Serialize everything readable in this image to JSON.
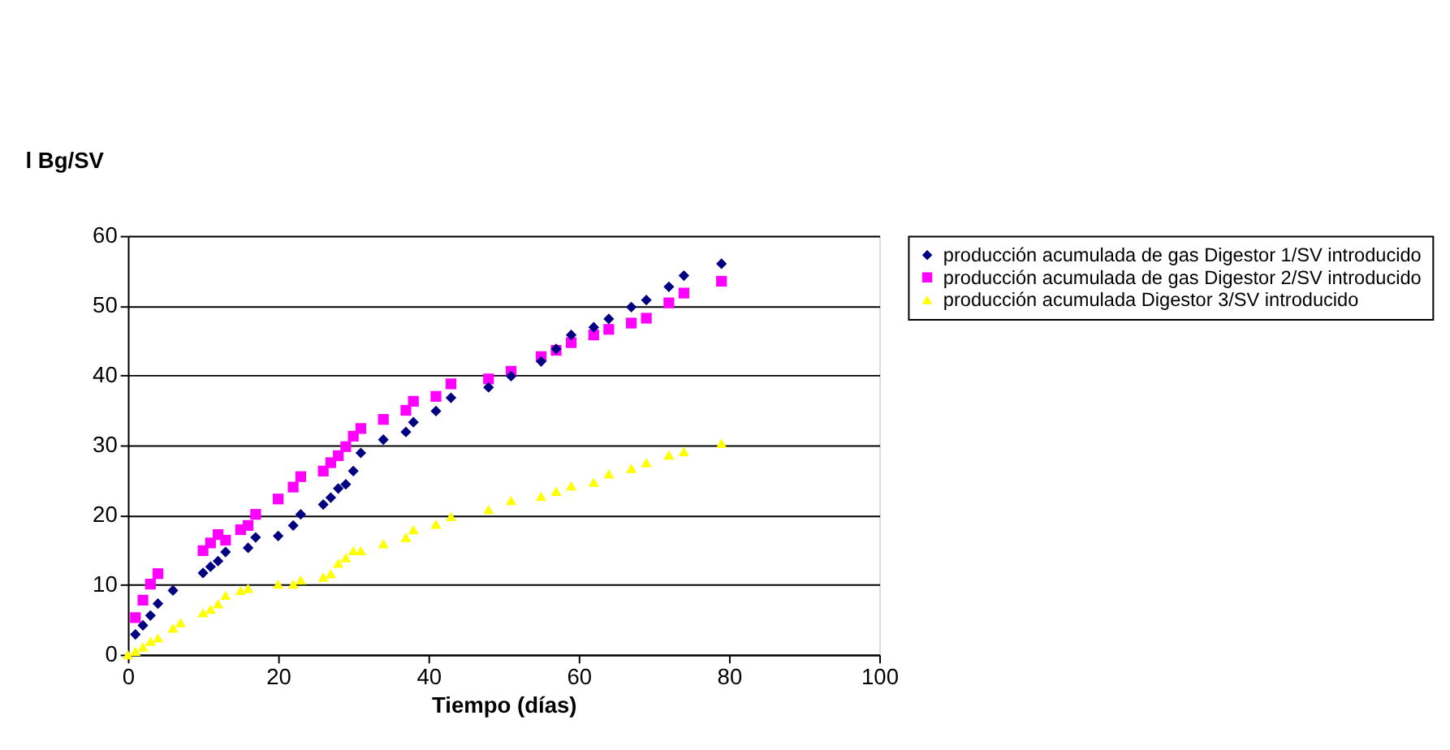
{
  "chart_data": {
    "type": "scatter",
    "xlabel": "Tiempo (días)",
    "ylabel": "l Bg/SV",
    "xlim": [
      0,
      100
    ],
    "xticks": [
      0,
      20,
      40,
      60,
      80,
      100
    ],
    "ylim": [
      0,
      60
    ],
    "yticks": [
      0,
      10,
      20,
      30,
      40,
      50,
      60
    ],
    "grid": "y",
    "legend": "right",
    "series": [
      {
        "name": "producción acumulada de gas Digestor 1/SV introducido",
        "color": "#000080",
        "marker": "diamond",
        "x": [
          1,
          2,
          3,
          4,
          6,
          10,
          11,
          12,
          13,
          16,
          17,
          20,
          22,
          23,
          26,
          27,
          28,
          29,
          30,
          31,
          34,
          37,
          38,
          41,
          43,
          48,
          51,
          55,
          57,
          59,
          62,
          64,
          67,
          69,
          72,
          74,
          79
        ],
        "values": [
          2.9,
          4.2,
          5.6,
          7.3,
          9.2,
          11.7,
          12.6,
          13.4,
          14.7,
          15.3,
          16.8,
          17.0,
          18.5,
          20.1,
          21.5,
          22.5,
          23.8,
          24.4,
          26.3,
          28.9,
          30.8,
          31.9,
          33.3,
          34.9,
          36.8,
          38.3,
          39.9,
          42.0,
          43.8,
          45.8,
          46.9,
          48.1,
          49.8,
          50.8,
          52.7,
          54.3,
          56.0
        ]
      },
      {
        "name": "producción acumulada de gas Digestor 2/SV introducido",
        "color": "#ff00ff",
        "marker": "square",
        "x": [
          1,
          2,
          3,
          4,
          10,
          11,
          12,
          13,
          15,
          16,
          17,
          20,
          22,
          23,
          26,
          27,
          28,
          29,
          30,
          31,
          34,
          37,
          38,
          41,
          43,
          48,
          51,
          55,
          57,
          59,
          62,
          64,
          67,
          69,
          72,
          74,
          79
        ],
        "values": [
          5.3,
          7.8,
          10.1,
          11.6,
          14.9,
          16.0,
          17.2,
          16.4,
          17.9,
          18.5,
          20.1,
          22.3,
          24.0,
          25.5,
          26.3,
          27.5,
          28.5,
          29.8,
          31.3,
          32.4,
          33.7,
          35.0,
          36.3,
          37.0,
          38.8,
          39.5,
          40.6,
          42.7,
          43.6,
          44.7,
          45.8,
          46.6,
          47.5,
          48.2,
          50.4,
          51.8,
          53.5
        ]
      },
      {
        "name": "producción acumulada Digestor 3/SV introducido",
        "color": "#ffff00",
        "marker": "triangle",
        "x": [
          0,
          1,
          2,
          3,
          4,
          6,
          7,
          10,
          11,
          12,
          13,
          15,
          16,
          20,
          22,
          23,
          26,
          27,
          28,
          29,
          30,
          31,
          34,
          37,
          38,
          41,
          43,
          48,
          51,
          55,
          57,
          59,
          62,
          64,
          67,
          69,
          72,
          74,
          79
        ],
        "values": [
          0,
          0.5,
          1.1,
          1.9,
          2.4,
          3.8,
          4.6,
          6.0,
          6.5,
          7.3,
          8.5,
          9.2,
          9.5,
          10.1,
          10.1,
          10.7,
          11.1,
          11.6,
          13.1,
          13.9,
          14.9,
          14.9,
          15.9,
          16.8,
          17.9,
          18.7,
          19.8,
          20.8,
          22.1,
          22.7,
          23.4,
          24.2,
          24.7,
          25.9,
          26.7,
          27.5,
          28.6,
          29.1,
          30.3
        ]
      }
    ]
  }
}
